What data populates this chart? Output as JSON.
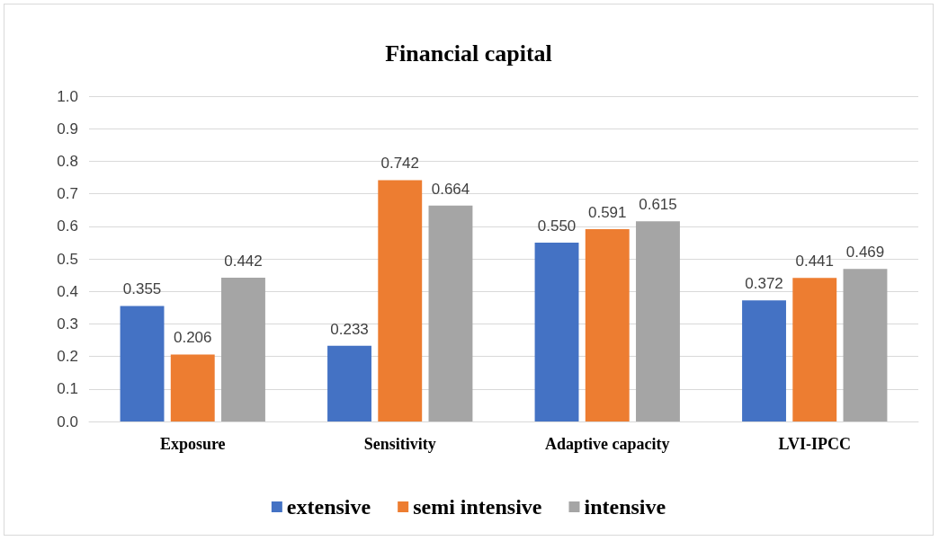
{
  "chart_data": {
    "type": "bar",
    "title": "Financial capital",
    "categories": [
      "Exposure",
      "Sensitivity",
      "Adaptive capacity",
      "LVI-IPCC"
    ],
    "series": [
      {
        "name": "extensive",
        "color": "#4472c4",
        "values": [
          0.355,
          0.233,
          0.55,
          0.372
        ],
        "value_labels": [
          "0.355",
          "0.233",
          "0.550",
          "0.372"
        ]
      },
      {
        "name": "semi intensive",
        "color": "#ed7d31",
        "values": [
          0.206,
          0.742,
          0.591,
          0.441
        ],
        "value_labels": [
          "0.206",
          "0.742",
          "0.591",
          "0.441"
        ]
      },
      {
        "name": "intensive",
        "color": "#a5a5a5",
        "values": [
          0.442,
          0.664,
          0.615,
          0.469
        ],
        "value_labels": [
          "0.442",
          "0.664",
          "0.615",
          "0.469"
        ]
      }
    ],
    "ylim": [
      0,
      1
    ],
    "yticks": [
      {
        "value": 0,
        "label": "0.0"
      },
      0.1,
      0.2,
      0.3,
      0.4,
      0.5,
      0.6,
      0.7,
      0.8,
      0.9,
      {
        "value": 1,
        "label": "1.0"
      }
    ],
    "grid": "y",
    "legend": "bottom"
  }
}
